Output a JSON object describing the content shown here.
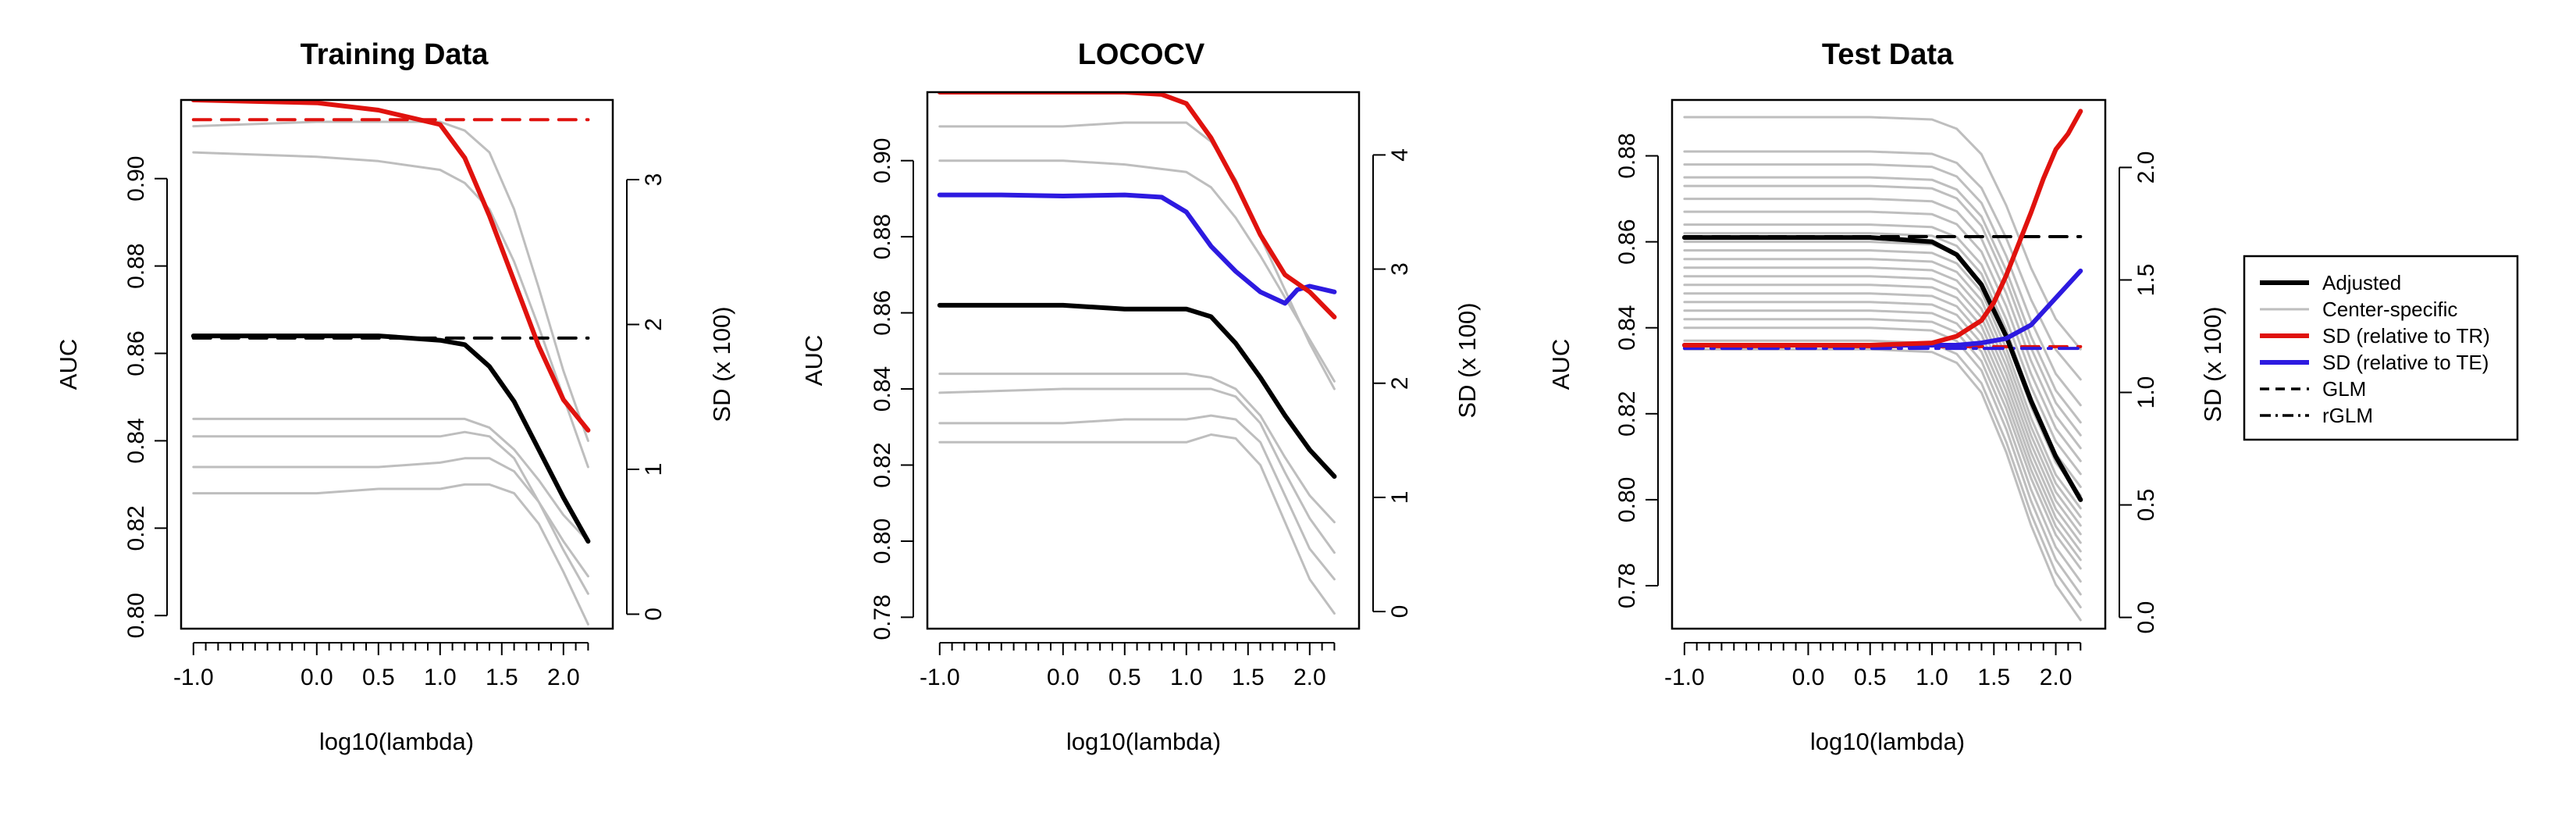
{
  "chart_data": [
    {
      "type": "line",
      "title": "Training Data",
      "xlabel": "log10(lambda)",
      "ylabel": "AUC",
      "y2label": "SD (x 100)",
      "x_ticks": [
        -1.0,
        0.0,
        0.5,
        1.0,
        1.5,
        2.0
      ],
      "x_tick_labels": [
        "-1.0",
        "0.0",
        "0.5",
        "1.0",
        "1.5",
        "2.0"
      ],
      "xlim": [
        -1.1,
        2.4
      ],
      "ylim": [
        0.797,
        0.918
      ],
      "y_ticks": [
        0.8,
        0.82,
        0.84,
        0.86,
        0.88,
        0.9
      ],
      "y_tick_labels": [
        "0.80",
        "0.82",
        "0.84",
        "0.86",
        "0.88",
        "0.90"
      ],
      "y2lim": [
        -0.1,
        3.55
      ],
      "y2_ticks": [
        0,
        1,
        2,
        3
      ],
      "y2_tick_labels": [
        "0",
        "1",
        "2",
        "3"
      ],
      "series": [
        {
          "role": "Center-specific",
          "color": "#bebebe",
          "axis": "left",
          "x": [
            -1.0,
            0.0,
            0.5,
            1.0,
            1.2,
            1.4,
            1.6,
            1.8,
            2.0,
            2.2
          ],
          "values": [
            0.906,
            0.905,
            0.904,
            0.902,
            0.899,
            0.893,
            0.881,
            0.866,
            0.85,
            0.834
          ]
        },
        {
          "role": "Center-specific",
          "color": "#bebebe",
          "axis": "left",
          "x": [
            -1.0,
            0.0,
            0.5,
            1.0,
            1.2,
            1.4,
            1.6,
            1.8,
            2.0,
            2.2
          ],
          "values": [
            0.912,
            0.913,
            0.913,
            0.913,
            0.911,
            0.906,
            0.893,
            0.875,
            0.856,
            0.84
          ]
        },
        {
          "role": "Center-specific",
          "color": "#bebebe",
          "axis": "left",
          "x": [
            -1.0,
            0.0,
            0.5,
            1.0,
            1.2,
            1.4,
            1.6,
            1.8,
            2.0,
            2.2
          ],
          "values": [
            0.845,
            0.845,
            0.845,
            0.845,
            0.845,
            0.843,
            0.838,
            0.831,
            0.823,
            0.817
          ]
        },
        {
          "role": "Center-specific",
          "color": "#bebebe",
          "axis": "left",
          "x": [
            -1.0,
            0.0,
            0.5,
            1.0,
            1.2,
            1.4,
            1.6,
            1.8,
            2.0,
            2.2
          ],
          "values": [
            0.841,
            0.841,
            0.841,
            0.841,
            0.842,
            0.841,
            0.836,
            0.826,
            0.815,
            0.805
          ]
        },
        {
          "role": "Center-specific",
          "color": "#bebebe",
          "axis": "left",
          "x": [
            -1.0,
            0.0,
            0.5,
            1.0,
            1.2,
            1.4,
            1.6,
            1.8,
            2.0,
            2.2
          ],
          "values": [
            0.834,
            0.834,
            0.834,
            0.835,
            0.836,
            0.836,
            0.833,
            0.826,
            0.817,
            0.809
          ]
        },
        {
          "role": "Center-specific",
          "color": "#bebebe",
          "axis": "left",
          "x": [
            -1.0,
            0.0,
            0.5,
            1.0,
            1.2,
            1.4,
            1.6,
            1.8,
            2.0,
            2.2
          ],
          "values": [
            0.828,
            0.828,
            0.829,
            0.829,
            0.83,
            0.83,
            0.828,
            0.821,
            0.81,
            0.798
          ]
        },
        {
          "role": "Adjusted",
          "color": "#000000",
          "axis": "left",
          "x": [
            -1.0,
            0.0,
            0.5,
            1.0,
            1.2,
            1.4,
            1.6,
            1.8,
            2.0,
            2.2
          ],
          "values": [
            0.864,
            0.864,
            0.864,
            0.863,
            0.862,
            0.857,
            0.849,
            0.838,
            0.827,
            0.817
          ]
        },
        {
          "role": "SD (relative to TR)",
          "color": "#e0120e",
          "axis": "right",
          "x": [
            -1.0,
            -0.5,
            0.0,
            0.5,
            0.8,
            1.0,
            1.2,
            1.4,
            1.6,
            1.8,
            2.0,
            2.2
          ],
          "values": [
            3.55,
            3.54,
            3.53,
            3.48,
            3.42,
            3.38,
            3.15,
            2.75,
            2.3,
            1.85,
            1.48,
            1.27
          ]
        },
        {
          "role": "GLM",
          "color": "#e0120e",
          "axis": "left",
          "dash": "dashed",
          "x": [
            -1.0,
            2.2
          ],
          "values": [
            0.9135,
            0.9135
          ]
        },
        {
          "role": "GLM",
          "color": "#000000",
          "axis": "left",
          "dash": "dashed",
          "x": [
            -1.0,
            2.2
          ],
          "values": [
            0.8635,
            0.8635
          ]
        }
      ]
    },
    {
      "type": "line",
      "title": "LOCOCV",
      "xlabel": "log10(lambda)",
      "ylabel": "AUC",
      "y2label": "SD (x 100)",
      "x_ticks": [
        -1.0,
        0.0,
        0.5,
        1.0,
        1.5,
        2.0
      ],
      "x_tick_labels": [
        "-1.0",
        "0.0",
        "0.5",
        "1.0",
        "1.5",
        "2.0"
      ],
      "xlim": [
        -1.1,
        2.4
      ],
      "ylim": [
        0.777,
        0.918
      ],
      "y_ticks": [
        0.78,
        0.8,
        0.82,
        0.84,
        0.86,
        0.88,
        0.9
      ],
      "y_tick_labels": [
        "0.78",
        "0.80",
        "0.82",
        "0.84",
        "0.86",
        "0.88",
        "0.90"
      ],
      "y2lim": [
        -0.15,
        4.55
      ],
      "y2_ticks": [
        0,
        1,
        2,
        3,
        4
      ],
      "y2_tick_labels": [
        "0",
        "1",
        "2",
        "3",
        "4"
      ],
      "series": [
        {
          "role": "Center-specific",
          "color": "#bebebe",
          "axis": "left",
          "x": [
            -1.0,
            0.0,
            0.5,
            1.0,
            1.2,
            1.4,
            1.6,
            1.8,
            2.0,
            2.2
          ],
          "values": [
            0.9,
            0.9,
            0.899,
            0.897,
            0.893,
            0.885,
            0.875,
            0.864,
            0.853,
            0.842
          ]
        },
        {
          "role": "Center-specific",
          "color": "#bebebe",
          "axis": "left",
          "x": [
            -1.0,
            0.0,
            0.5,
            1.0,
            1.2,
            1.4,
            1.6,
            1.8,
            2.0,
            2.2
          ],
          "values": [
            0.909,
            0.909,
            0.91,
            0.91,
            0.905,
            0.895,
            0.88,
            0.866,
            0.852,
            0.84
          ]
        },
        {
          "role": "Center-specific",
          "color": "#bebebe",
          "axis": "left",
          "x": [
            -1.0,
            0.0,
            0.5,
            1.0,
            1.2,
            1.4,
            1.6,
            1.8,
            2.0,
            2.2
          ],
          "values": [
            0.844,
            0.844,
            0.844,
            0.844,
            0.843,
            0.84,
            0.833,
            0.822,
            0.812,
            0.805
          ]
        },
        {
          "role": "Center-specific",
          "color": "#bebebe",
          "axis": "left",
          "x": [
            -1.0,
            0.0,
            0.5,
            1.0,
            1.2,
            1.4,
            1.6,
            1.8,
            2.0,
            2.2
          ],
          "values": [
            0.839,
            0.84,
            0.84,
            0.84,
            0.84,
            0.838,
            0.831,
            0.818,
            0.806,
            0.797
          ]
        },
        {
          "role": "Center-specific",
          "color": "#bebebe",
          "axis": "left",
          "x": [
            -1.0,
            0.0,
            0.5,
            1.0,
            1.2,
            1.4,
            1.6,
            1.8,
            2.0,
            2.2
          ],
          "values": [
            0.831,
            0.831,
            0.832,
            0.832,
            0.833,
            0.832,
            0.826,
            0.812,
            0.798,
            0.79
          ]
        },
        {
          "role": "Center-specific",
          "color": "#bebebe",
          "axis": "left",
          "x": [
            -1.0,
            0.0,
            0.5,
            1.0,
            1.2,
            1.4,
            1.6,
            1.8,
            2.0,
            2.2
          ],
          "values": [
            0.826,
            0.826,
            0.826,
            0.826,
            0.828,
            0.827,
            0.82,
            0.805,
            0.79,
            0.781
          ]
        },
        {
          "role": "Adjusted",
          "color": "#000000",
          "axis": "left",
          "x": [
            -1.0,
            0.0,
            0.5,
            1.0,
            1.2,
            1.4,
            1.6,
            1.8,
            2.0,
            2.2
          ],
          "values": [
            0.862,
            0.862,
            0.861,
            0.861,
            0.859,
            0.852,
            0.843,
            0.833,
            0.824,
            0.817
          ]
        },
        {
          "role": "SD (relative to TR)",
          "color": "#e0120e",
          "axis": "right",
          "x": [
            -1.0,
            -0.5,
            0.0,
            0.5,
            0.8,
            1.0,
            1.2,
            1.4,
            1.6,
            1.8,
            2.0,
            2.2
          ],
          "values": [
            4.55,
            4.55,
            4.55,
            4.55,
            4.53,
            4.45,
            4.15,
            3.75,
            3.3,
            2.95,
            2.8,
            2.58
          ]
        },
        {
          "role": "SD (relative to TE)",
          "color": "#2d1ae0",
          "axis": "right",
          "x": [
            -1.0,
            -0.5,
            0.0,
            0.5,
            0.8,
            1.0,
            1.2,
            1.4,
            1.6,
            1.8,
            1.9,
            2.0,
            2.2
          ],
          "values": [
            3.65,
            3.65,
            3.64,
            3.65,
            3.63,
            3.5,
            3.2,
            2.98,
            2.8,
            2.7,
            2.82,
            2.85,
            2.8
          ]
        }
      ]
    },
    {
      "type": "line",
      "title": "Test Data",
      "xlabel": "log10(lambda)",
      "ylabel": "AUC",
      "y2label": "SD (x 100)",
      "x_ticks": [
        -1.0,
        0.0,
        0.5,
        1.0,
        1.5,
        2.0
      ],
      "x_tick_labels": [
        "-1.0",
        "0.0",
        "0.5",
        "1.0",
        "1.5",
        "2.0"
      ],
      "xlim": [
        -1.1,
        2.4
      ],
      "ylim": [
        0.77,
        0.893
      ],
      "y_ticks": [
        0.78,
        0.8,
        0.82,
        0.84,
        0.86,
        0.88
      ],
      "y_tick_labels": [
        "0.78",
        "0.80",
        "0.82",
        "0.84",
        "0.86",
        "0.88"
      ],
      "y2lim": [
        -0.05,
        2.3
      ],
      "y2_ticks": [
        0.0,
        0.5,
        1.0,
        1.5,
        2.0
      ],
      "y2_tick_labels": [
        "0.0",
        "0.5",
        "1.0",
        "1.5",
        "2.0"
      ],
      "center_specific_plateaus": [
        0.889,
        0.881,
        0.878,
        0.875,
        0.873,
        0.87,
        0.867,
        0.864,
        0.862,
        0.86,
        0.858,
        0.856,
        0.854,
        0.852,
        0.85,
        0.848,
        0.846,
        0.844,
        0.842,
        0.84,
        0.837,
        0.835
      ],
      "center_specific_end": [
        0.835,
        0.828,
        0.822,
        0.818,
        0.815,
        0.812,
        0.809,
        0.806,
        0.803,
        0.801,
        0.798,
        0.796,
        0.794,
        0.792,
        0.79,
        0.788,
        0.786,
        0.784,
        0.781,
        0.778,
        0.775,
        0.772
      ],
      "series": [
        {
          "role": "Adjusted",
          "color": "#000000",
          "axis": "left",
          "x": [
            -1.0,
            0.0,
            0.5,
            1.0,
            1.2,
            1.4,
            1.6,
            1.8,
            2.0,
            2.2
          ],
          "values": [
            0.861,
            0.861,
            0.861,
            0.86,
            0.857,
            0.85,
            0.838,
            0.823,
            0.81,
            0.8
          ]
        },
        {
          "role": "SD (relative to TR)",
          "color": "#e0120e",
          "axis": "right",
          "x": [
            -1.0,
            0.0,
            0.5,
            1.0,
            1.2,
            1.4,
            1.5,
            1.6,
            1.7,
            1.8,
            1.9,
            2.0,
            2.1,
            2.2
          ],
          "values": [
            1.21,
            1.21,
            1.21,
            1.22,
            1.25,
            1.32,
            1.4,
            1.52,
            1.66,
            1.8,
            1.95,
            2.08,
            2.15,
            2.25
          ]
        },
        {
          "role": "SD (relative to TE)",
          "color": "#2d1ae0",
          "axis": "right",
          "x": [
            -1.0,
            0.0,
            0.5,
            1.0,
            1.2,
            1.4,
            1.6,
            1.8,
            2.0,
            2.2
          ],
          "values": [
            1.21,
            1.21,
            1.21,
            1.21,
            1.21,
            1.22,
            1.24,
            1.3,
            1.42,
            1.54
          ]
        },
        {
          "role": "GLM",
          "color": "#000000",
          "axis": "left",
          "dash": "dashed",
          "x": [
            -1.0,
            2.2
          ],
          "values": [
            0.8612,
            0.8612
          ]
        },
        {
          "role": "GLM",
          "color": "#e0120e",
          "axis": "left",
          "dash": "dashed",
          "x": [
            -1.0,
            2.2
          ],
          "values": [
            0.8356,
            0.8356
          ]
        },
        {
          "role": "rGLM",
          "color": "#2d1ae0",
          "axis": "left",
          "dash": "dotdash",
          "x": [
            -1.0,
            2.2
          ],
          "values": [
            0.8352,
            0.8352
          ]
        }
      ]
    }
  ],
  "legend": {
    "placement": "right",
    "items": [
      {
        "label": "Adjusted",
        "color": "#000000",
        "style": "solid-thick"
      },
      {
        "label": "Center-specific",
        "color": "#bebebe",
        "style": "solid-thin"
      },
      {
        "label": "SD (relative to TR)",
        "color": "#e0120e",
        "style": "solid-thick"
      },
      {
        "label": "SD (relative to TE)",
        "color": "#2d1ae0",
        "style": "solid-thick"
      },
      {
        "label": "GLM",
        "color": "#000000",
        "style": "dashed"
      },
      {
        "label": "rGLM",
        "color": "#000000",
        "style": "dotdash"
      }
    ]
  }
}
